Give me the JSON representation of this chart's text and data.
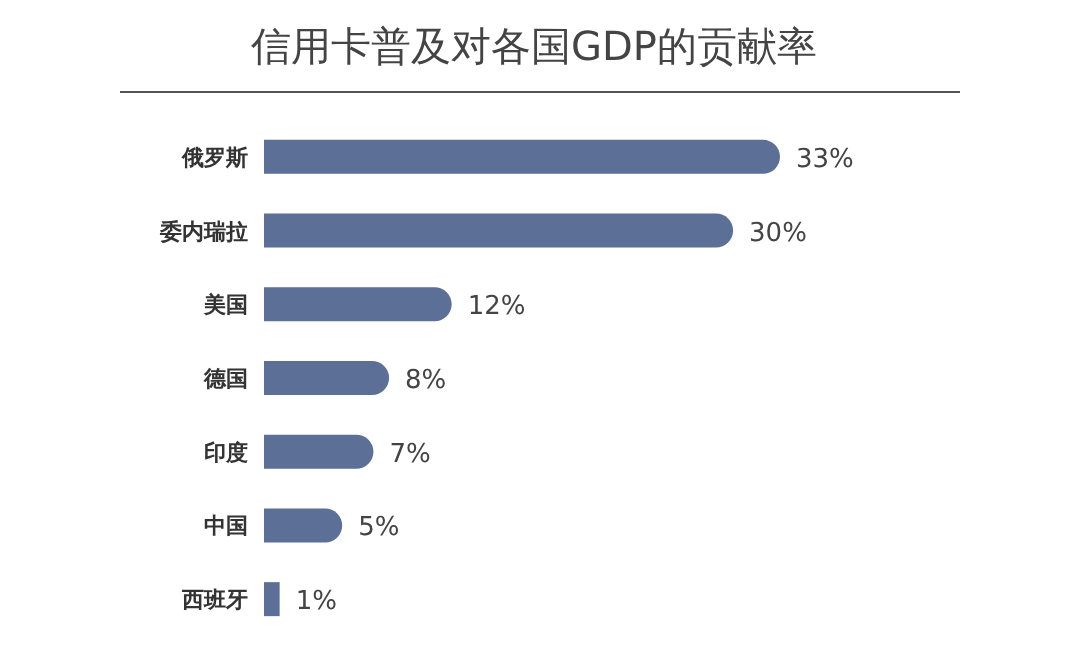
{
  "chart_data": {
    "type": "bar",
    "orientation": "horizontal",
    "title": "信用卡普及对各国GDP的贡献率",
    "categories": [
      "俄罗斯",
      "委内瑞拉",
      "美国",
      "德国",
      "印度",
      "中国",
      "西班牙"
    ],
    "values": [
      33,
      30,
      12,
      8,
      7,
      5,
      1
    ],
    "value_labels": [
      "33%",
      "30%",
      "12%",
      "8%",
      "7%",
      "5%",
      "1%"
    ],
    "color": "#5b6f97"
  }
}
